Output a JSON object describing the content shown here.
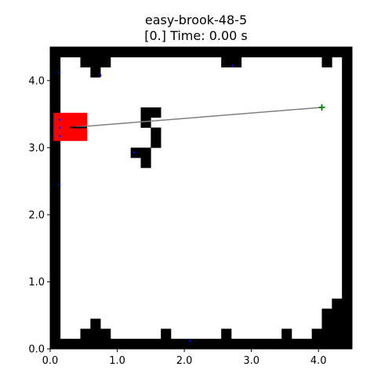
{
  "title": {
    "line1": "easy-brook-48-5",
    "line2": "[0.] Time: 0.00 s"
  },
  "chart_data": {
    "type": "scatter",
    "xlim": [
      0,
      4.5
    ],
    "ylim": [
      0,
      4.5
    ],
    "xticks": [
      "0.0",
      "1.0",
      "2.0",
      "3.0",
      "4.0"
    ],
    "yticks": [
      "0.0",
      "1.0",
      "2.0",
      "3.0",
      "4.0"
    ],
    "grid": false,
    "cell_size": 0.15,
    "obstacles": [
      [
        0.0,
        4.35,
        4.5,
        0.15
      ],
      [
        0.0,
        0.0,
        4.5,
        0.15
      ],
      [
        0.0,
        0.0,
        0.15,
        4.5
      ],
      [
        4.35,
        0.0,
        0.15,
        4.5
      ],
      [
        0.45,
        4.2,
        0.45,
        0.15
      ],
      [
        0.6,
        4.05,
        0.15,
        0.15
      ],
      [
        2.55,
        4.2,
        0.3,
        0.15
      ],
      [
        4.05,
        4.2,
        0.15,
        0.15
      ],
      [
        1.35,
        3.45,
        0.3,
        0.15
      ],
      [
        1.35,
        3.3,
        0.15,
        0.15
      ],
      [
        1.5,
        3.0,
        0.15,
        0.3
      ],
      [
        1.2,
        2.85,
        0.3,
        0.15
      ],
      [
        1.35,
        2.7,
        0.15,
        0.15
      ],
      [
        0.45,
        0.15,
        0.45,
        0.15
      ],
      [
        0.6,
        0.3,
        0.15,
        0.15
      ],
      [
        1.65,
        0.15,
        0.15,
        0.15
      ],
      [
        2.55,
        0.15,
        0.15,
        0.15
      ],
      [
        3.45,
        0.15,
        0.15,
        0.15
      ],
      [
        3.9,
        0.15,
        0.45,
        0.15
      ],
      [
        4.05,
        0.3,
        0.3,
        0.3
      ],
      [
        4.2,
        0.6,
        0.15,
        0.15
      ]
    ],
    "agent": {
      "x": 0.05,
      "y": 3.1,
      "w": 0.5,
      "h": 0.42,
      "color": "#ff0000"
    },
    "heading_segment": {
      "x1": 0.3,
      "y1": 3.3,
      "x2": 0.55,
      "y2": 3.3,
      "color": "#000000"
    },
    "path": {
      "x1": 0.3,
      "y1": 3.3,
      "x2": 4.05,
      "y2": 3.6,
      "color": "#808080"
    },
    "goal": {
      "x": 4.05,
      "y": 3.6,
      "color": "#008000",
      "marker": "plus"
    },
    "points": {
      "color": "#0000ff",
      "x": [
        0.14,
        0.75,
        2.72,
        0.14,
        0.14,
        0.14,
        1.25,
        0.14,
        2.08
      ],
      "y": [
        4.12,
        4.08,
        4.22,
        3.42,
        3.3,
        3.17,
        2.93,
        2.45,
        0.12
      ]
    }
  }
}
